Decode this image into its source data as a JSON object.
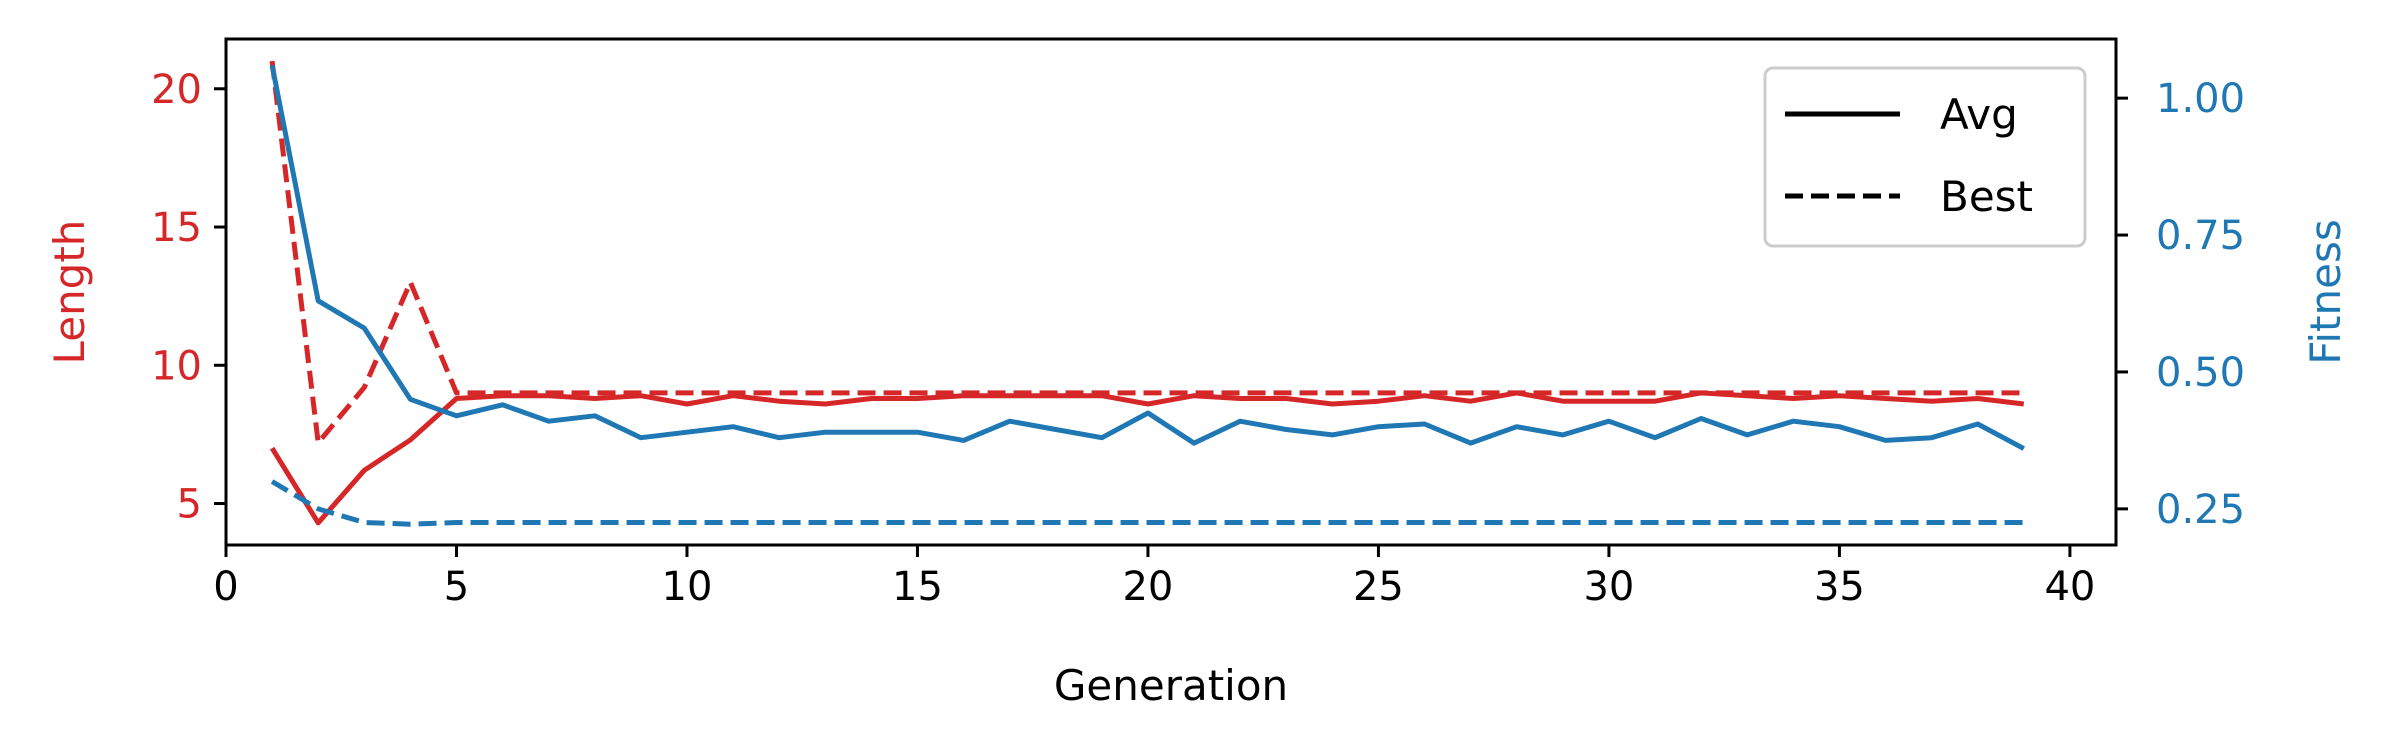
{
  "chart_data": {
    "type": "line",
    "xlabel": "Generation",
    "ylabel_left": "Length",
    "ylabel_right": "Fitness",
    "xlim": [
      0,
      41
    ],
    "ylim_left": [
      3.5,
      21.8
    ],
    "ylim_right": [
      0.184,
      1.108
    ],
    "xticks": [
      0,
      5,
      10,
      15,
      20,
      25,
      30,
      35,
      40
    ],
    "yticks_left": [
      5,
      10,
      15,
      20
    ],
    "yticks_right": [
      "0.25",
      "0.50",
      "0.75",
      "1.00"
    ],
    "legend": {
      "placement": "top-right",
      "entries": [
        {
          "label": "Avg",
          "style": "solid"
        },
        {
          "label": "Best",
          "style": "dashed"
        }
      ]
    },
    "colors": {
      "length": "#d62728",
      "fitness": "#1f77b4"
    },
    "x": [
      1,
      2,
      3,
      4,
      5,
      6,
      7,
      8,
      9,
      10,
      11,
      12,
      13,
      14,
      15,
      16,
      17,
      18,
      19,
      20,
      21,
      22,
      23,
      24,
      25,
      26,
      27,
      28,
      29,
      30,
      31,
      32,
      33,
      34,
      35,
      36,
      37,
      38,
      39
    ],
    "series": [
      {
        "axis": "left",
        "metric": "length",
        "style": "solid",
        "values": [
          7.0,
          4.3,
          6.2,
          7.3,
          8.8,
          8.9,
          8.9,
          8.8,
          8.9,
          8.6,
          8.9,
          8.7,
          8.6,
          8.8,
          8.8,
          8.9,
          8.9,
          8.9,
          8.9,
          8.6,
          8.9,
          8.8,
          8.8,
          8.6,
          8.7,
          8.9,
          8.7,
          9.0,
          8.7,
          8.7,
          8.7,
          9.0,
          8.9,
          8.8,
          8.9,
          8.8,
          8.7,
          8.8,
          8.6
        ]
      },
      {
        "axis": "left",
        "metric": "length",
        "style": "dashed",
        "values": [
          21.0,
          7.2,
          9.2,
          13.0,
          9.0,
          9.0,
          9.0,
          9.0,
          9.0,
          9.0,
          9.0,
          9.0,
          9.0,
          9.0,
          9.0,
          9.0,
          9.0,
          9.0,
          9.0,
          9.0,
          9.0,
          9.0,
          9.0,
          9.0,
          9.0,
          9.0,
          9.0,
          9.0,
          9.0,
          9.0,
          9.0,
          9.0,
          9.0,
          9.0,
          9.0,
          9.0,
          9.0,
          9.0,
          9.0
        ]
      },
      {
        "axis": "right",
        "metric": "fitness",
        "style": "solid",
        "values": [
          1.06,
          0.63,
          0.58,
          0.45,
          0.42,
          0.44,
          0.41,
          0.42,
          0.38,
          0.39,
          0.4,
          0.38,
          0.39,
          0.39,
          0.39,
          0.375,
          0.41,
          0.395,
          0.38,
          0.425,
          0.37,
          0.41,
          0.395,
          0.385,
          0.4,
          0.405,
          0.37,
          0.4,
          0.385,
          0.41,
          0.38,
          0.415,
          0.385,
          0.41,
          0.4,
          0.375,
          0.38,
          0.405,
          0.36
        ]
      },
      {
        "axis": "right",
        "metric": "fitness",
        "style": "dashed",
        "values": [
          0.3,
          0.25,
          0.225,
          0.222,
          0.225,
          0.225,
          0.225,
          0.225,
          0.225,
          0.225,
          0.225,
          0.225,
          0.225,
          0.225,
          0.225,
          0.225,
          0.225,
          0.225,
          0.225,
          0.225,
          0.225,
          0.225,
          0.225,
          0.225,
          0.225,
          0.225,
          0.225,
          0.225,
          0.225,
          0.225,
          0.225,
          0.225,
          0.225,
          0.225,
          0.225,
          0.225,
          0.225,
          0.225,
          0.225
        ]
      }
    ]
  }
}
